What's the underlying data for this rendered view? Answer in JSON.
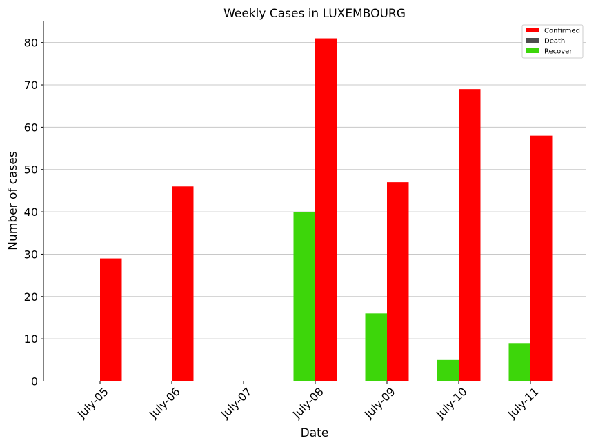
{
  "chart_data": {
    "type": "bar",
    "title": "Weekly Cases in LUXEMBOURG",
    "xlabel": "Date",
    "ylabel": "Number of cases",
    "categories": [
      "July-05",
      "July-06",
      "July-07",
      "July-08",
      "July-09",
      "July-10",
      "July-11"
    ],
    "series": [
      {
        "name": "Confirmed",
        "color": "#ff0000",
        "values": [
          29,
          46,
          0,
          81,
          47,
          69,
          58
        ]
      },
      {
        "name": "Death",
        "color": "#4d4d4d",
        "values": [
          0,
          0,
          0,
          0,
          0,
          0,
          0
        ]
      },
      {
        "name": "Recover",
        "color": "#3dd60a",
        "values": [
          0,
          0,
          0,
          40,
          16,
          5,
          9
        ]
      }
    ],
    "ylim": [
      0,
      85
    ],
    "yticks": [
      0,
      10,
      20,
      30,
      40,
      50,
      60,
      70,
      80
    ],
    "grid": "horizontal",
    "legend": "top-right"
  }
}
